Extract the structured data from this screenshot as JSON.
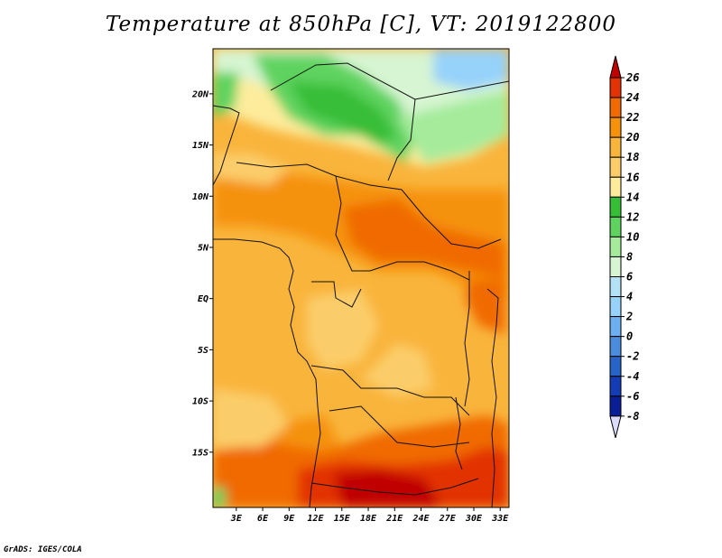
{
  "title": "Temperature at 850hPa [C], VT: 2019122800",
  "credit": "GrADS: IGES/COLA",
  "map": {
    "lat_labels": [
      "20N",
      "15N",
      "10N",
      "5N",
      "EQ",
      "5S",
      "10S",
      "15S"
    ],
    "lat_values": [
      20,
      15,
      10,
      5,
      0,
      -5,
      -10,
      -15
    ],
    "lon_labels": [
      "3E",
      "6E",
      "9E",
      "12E",
      "15E",
      "18E",
      "21E",
      "24E",
      "27E",
      "30E",
      "33E"
    ],
    "lon_values": [
      3,
      6,
      9,
      12,
      15,
      18,
      21,
      24,
      27,
      30,
      33
    ]
  },
  "colorbar": {
    "levels": [
      "26",
      "24",
      "22",
      "20",
      "18",
      "16",
      "14",
      "12",
      "10",
      "8",
      "6",
      "4",
      "2",
      "0",
      "-2",
      "-4",
      "-6",
      "-8"
    ],
    "colors": [
      "#c00000",
      "#e23200",
      "#f06a00",
      "#f5920a",
      "#f9b43c",
      "#fbcd6a",
      "#fdec9c",
      "#37be37",
      "#5fd35f",
      "#a5eb9b",
      "#d7f5d2",
      "#b4e1f5",
      "#96d2fa",
      "#6eaff0",
      "#4b8cdc",
      "#2864c8",
      "#143cb4",
      "#0a1e96",
      "#06066e"
    ],
    "over_color": "#c00000",
    "under_color": "#dcdcfa"
  }
}
